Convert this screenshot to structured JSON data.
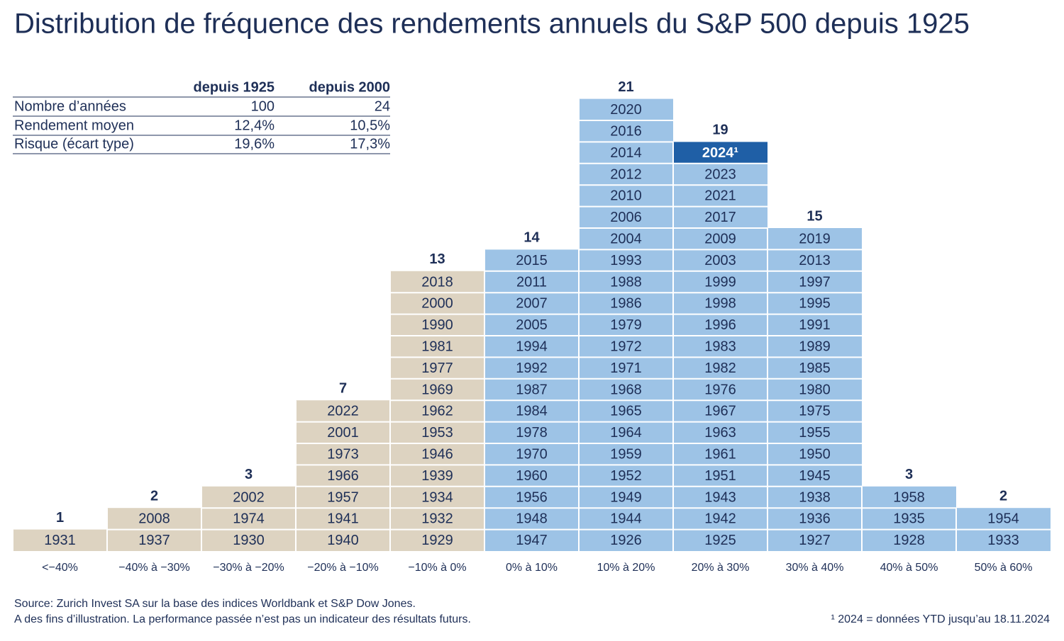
{
  "chart_data": {
    "type": "blocks",
    "title": "Distribution de fréquence des rendements annuels du S&P 500 depuis 1925",
    "stats_table": {
      "columns": [
        "depuis 1925",
        "depuis 2000"
      ],
      "rows": [
        [
          "Nombre d’années",
          "100",
          "24"
        ],
        [
          "Rendement moyen",
          "12,4%",
          "10,5%"
        ],
        [
          "Risque (écart type)",
          "19,6%",
          "17,3%"
        ]
      ]
    },
    "columns": [
      {
        "label": "<−40%",
        "count": 1,
        "color": "#ddd3c1",
        "years": [
          "1931"
        ]
      },
      {
        "label": "−40% à −30%",
        "count": 2,
        "color": "#ddd3c1",
        "years": [
          "1937",
          "2008"
        ]
      },
      {
        "label": "−30% à −20%",
        "count": 3,
        "color": "#ddd3c1",
        "years": [
          "1930",
          "1974",
          "2002"
        ]
      },
      {
        "label": "−20% à −10%",
        "count": 7,
        "color": "#ddd3c1",
        "years": [
          "1940",
          "1941",
          "1957",
          "1966",
          "1973",
          "2001",
          "2022"
        ]
      },
      {
        "label": "−10% à 0%",
        "count": 13,
        "color": "#ddd3c1",
        "years": [
          "1929",
          "1932",
          "1934",
          "1939",
          "1946",
          "1953",
          "1962",
          "1969",
          "1977",
          "1981",
          "1990",
          "2000",
          "2018"
        ]
      },
      {
        "label": "0% à 10%",
        "count": 14,
        "color": "#9dc3e6",
        "years": [
          "1947",
          "1948",
          "1956",
          "1960",
          "1970",
          "1978",
          "1984",
          "1987",
          "1992",
          "1994",
          "2005",
          "2007",
          "2011",
          "2015"
        ]
      },
      {
        "label": "10% à 20%",
        "count": 21,
        "color": "#9dc3e6",
        "years": [
          "1926",
          "1944",
          "1949",
          "1952",
          "1959",
          "1964",
          "1965",
          "1968",
          "1971",
          "1972",
          "1979",
          "1986",
          "1988",
          "1993",
          "2004",
          "2006",
          "2010",
          "2012",
          "2014",
          "2016",
          "2020"
        ]
      },
      {
        "label": "20% à 30%",
        "count": 19,
        "color": "#9dc3e6",
        "years": [
          "1925",
          "1942",
          "1943",
          "1951",
          "1961",
          "1963",
          "1967",
          "1976",
          "1982",
          "1983",
          "1996",
          "1998",
          "1999",
          "2003",
          "2009",
          "2017",
          "2021",
          "2023",
          {
            "label": "2024¹",
            "color": "#1f5fa6",
            "text_color": "#ffffff"
          }
        ]
      },
      {
        "label": "30% à 40%",
        "count": 15,
        "color": "#9dc3e6",
        "years": [
          "1927",
          "1936",
          "1938",
          "1945",
          "1950",
          "1955",
          "1975",
          "1980",
          "1985",
          "1989",
          "1991",
          "1995",
          "1997",
          "2013",
          "2019"
        ]
      },
      {
        "label": "40% à 50%",
        "count": 3,
        "color": "#9dc3e6",
        "years": [
          "1928",
          "1935",
          "1958"
        ]
      },
      {
        "label": "50% à 60%",
        "count": 2,
        "color": "#9dc3e6",
        "years": [
          "1933",
          "1954"
        ]
      }
    ],
    "source": "Source: Zurich Invest SA sur la base des indices Worldbank et S&P Dow Jones.",
    "disclaimer": "A des fins d’illustration. La performance passée n’est pas un indicateur des résultats futurs.",
    "footnote": "¹ 2024 = données YTD jusqu’au 18.11.2024"
  }
}
